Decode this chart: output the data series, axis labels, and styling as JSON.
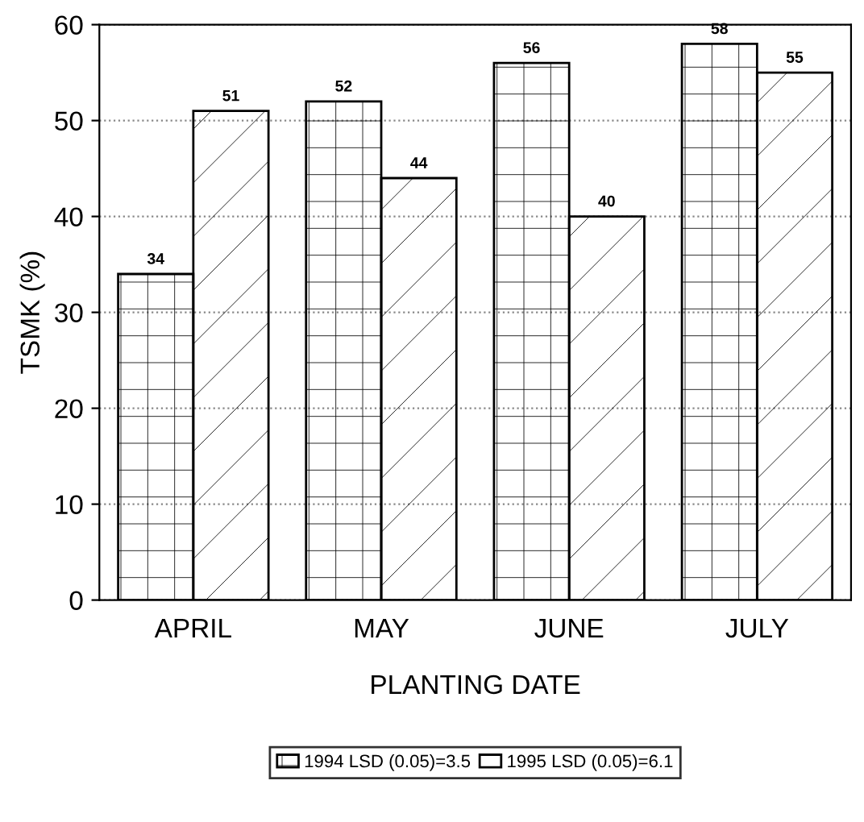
{
  "chart_data": {
    "type": "bar",
    "xlabel": "PLANTING DATE",
    "ylabel": "TSMK (%)",
    "categories": [
      "APRIL",
      "MAY",
      "JUNE",
      "JULY"
    ],
    "series": [
      {
        "name": "1994 LSD (0.05)=3.5",
        "color": "#000000",
        "values": [
          34,
          52,
          56,
          58
        ]
      },
      {
        "name": "1995 LSD (0.05)=6.1",
        "color": "#000000",
        "values": [
          51,
          44,
          40,
          55
        ]
      }
    ],
    "ylim": [
      0,
      60
    ],
    "yticks": [
      0,
      10,
      20,
      30,
      40,
      50,
      60
    ],
    "grid": "y",
    "legend": "bottom",
    "data_labels": true
  }
}
